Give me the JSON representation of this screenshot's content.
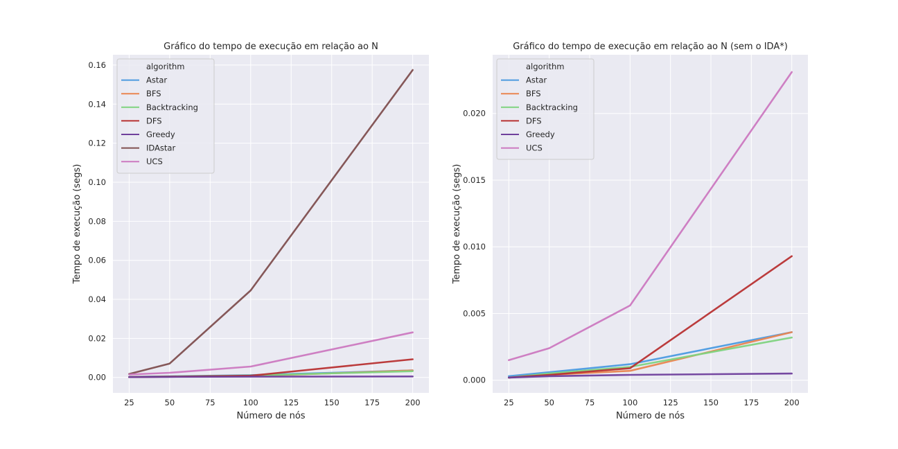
{
  "chart_data": [
    {
      "type": "line",
      "title": "Gráfico do tempo de execução em relação ao N",
      "xlabel": "Número de nós",
      "ylabel": "Tempo de execução (segs)",
      "x": [
        25,
        50,
        100,
        200
      ],
      "xlim": [
        15,
        210
      ],
      "ylim": [
        -0.0079,
        0.1653
      ],
      "xticks": [
        25,
        50,
        75,
        100,
        125,
        150,
        175,
        200
      ],
      "yticks": [
        "0.00",
        "0.02",
        "0.04",
        "0.06",
        "0.08",
        "0.10",
        "0.12",
        "0.14",
        "0.16"
      ],
      "ytick_values": [
        0,
        0.02,
        0.04,
        0.06,
        0.08,
        0.1,
        0.12,
        0.14,
        0.16
      ],
      "grid": true,
      "legend_title": "algorithm",
      "legend_position": "top-left",
      "series": [
        {
          "name": "Astar",
          "color": "#4c9be0",
          "values": [
            0.0003,
            0.0006,
            0.0012,
            0.0036
          ]
        },
        {
          "name": "BFS",
          "color": "#e98550",
          "values": [
            0.0002,
            0.0004,
            0.0007,
            0.0036
          ]
        },
        {
          "name": "Backtracking",
          "color": "#7fd37f",
          "values": [
            0.0002,
            0.0005,
            0.001,
            0.0032
          ]
        },
        {
          "name": "DFS",
          "color": "#b83232",
          "values": [
            0.0002,
            0.0004,
            0.0009,
            0.0093
          ]
        },
        {
          "name": "Greedy",
          "color": "#6f3f9c",
          "values": [
            0.0002,
            0.0003,
            0.0004,
            0.0005
          ]
        },
        {
          "name": "IDAstar",
          "color": "#7f4f4f",
          "values": [
            0.0018,
            0.0071,
            0.0446,
            0.1575
          ]
        },
        {
          "name": "UCS",
          "color": "#cc79c0",
          "values": [
            0.0015,
            0.0024,
            0.0056,
            0.0231
          ]
        }
      ]
    },
    {
      "type": "line",
      "title": "Gráfico do tempo de execução em relação ao N (sem o IDA*)",
      "xlabel": "Número de nós",
      "ylabel": "Tempo de execução (segs)",
      "x": [
        25,
        50,
        100,
        200
      ],
      "xlim": [
        15,
        210
      ],
      "ylim": [
        -0.00095,
        0.0244
      ],
      "xticks": [
        25,
        50,
        75,
        100,
        125,
        150,
        175,
        200
      ],
      "yticks": [
        "0.000",
        "0.005",
        "0.010",
        "0.015",
        "0.020"
      ],
      "ytick_values": [
        0,
        0.005,
        0.01,
        0.015,
        0.02
      ],
      "grid": true,
      "legend_title": "algorithm",
      "legend_position": "top-left",
      "series": [
        {
          "name": "Astar",
          "color": "#4c9be0",
          "values": [
            0.0003,
            0.0006,
            0.0012,
            0.0036
          ]
        },
        {
          "name": "BFS",
          "color": "#e98550",
          "values": [
            0.0002,
            0.0004,
            0.0007,
            0.0036
          ]
        },
        {
          "name": "Backtracking",
          "color": "#7fd37f",
          "values": [
            0.0002,
            0.0005,
            0.001,
            0.0032
          ]
        },
        {
          "name": "DFS",
          "color": "#b83232",
          "values": [
            0.0002,
            0.0004,
            0.0009,
            0.0093
          ]
        },
        {
          "name": "Greedy",
          "color": "#6f3f9c",
          "values": [
            0.0002,
            0.0003,
            0.0004,
            0.0005
          ]
        },
        {
          "name": "UCS",
          "color": "#cc79c0",
          "values": [
            0.0015,
            0.0024,
            0.0056,
            0.0231
          ]
        }
      ]
    }
  ]
}
